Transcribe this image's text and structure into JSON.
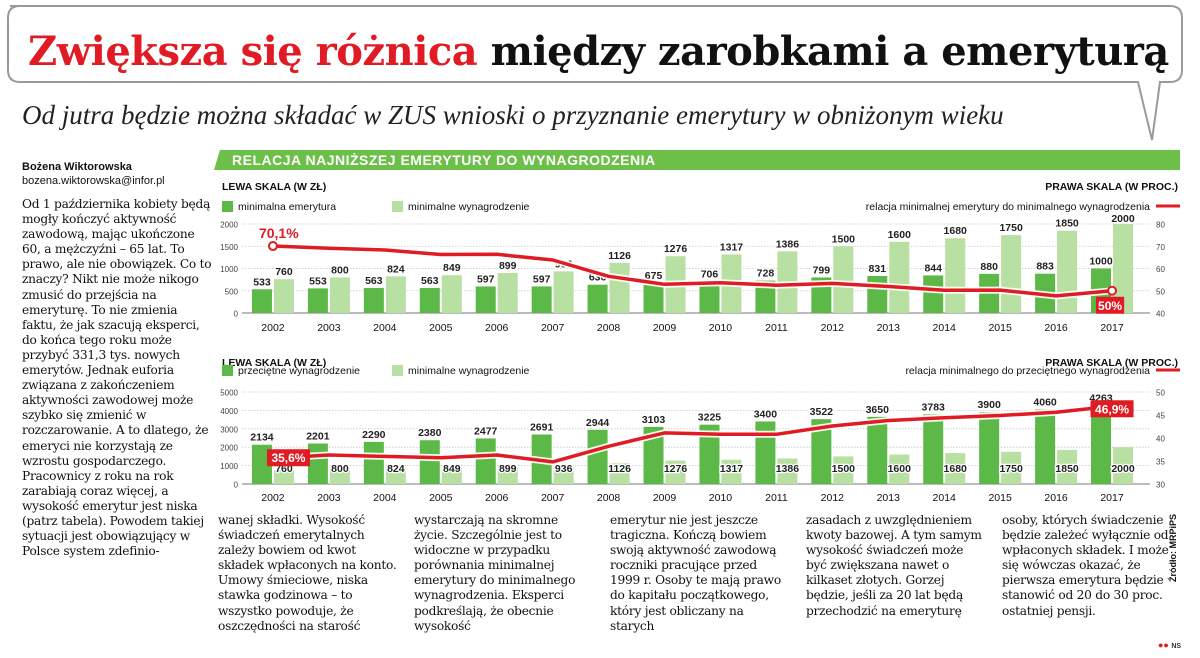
{
  "header": {
    "title_red": "Zwiększa się różnica",
    "title_black": " między zarobkami a emeryturą",
    "subtitle": "Od jutra będzie można składać w ZUS wnioski o przyznanie emerytury w obniżonym wieku"
  },
  "author": {
    "name": "Bożena Wiktorowska",
    "email": "bozena.wiktorowska@infor.pl"
  },
  "left_column": "Od 1 października kobiety będą mogły kończyć aktywność zawodową, mając ukończone 60, a mężczyźni – 65 lat. To prawo, ale nie obowiązek. Co to znaczy? Nikt nie może nikogo zmusić do przejścia na emeryturę. To nie zmienia faktu, że jak szacują eksperci, do końca tego roku może przybyć 331,3 tys. nowych emerytów. Jednak euforia związana z zakończeniem aktywności zawodowej może szybko się zmienić w rozczarowanie. A to dlatego, że emeryci nie korzystają ze wzrostu gospodarczego. Pracownicy z roku na rok zarabiają coraz więcej, a wysokość emerytur jest niska (patrz tabela). Powodem takiej sytuacji jest obowiązujący w Polsce system zdefinio-",
  "bottom_columns": [
    "wanej składki. Wysokość świadczeń emerytalnych zależy bowiem od kwot składek wpłaconych na konto. Umowy śmieciowe, niska stawka godzinowa – to wszystko powoduje, że oszczędności na starość",
    "wystarczają na skromne życie. Szczególnie jest to widoczne w przypadku porównania minimalnej emerytury do minimalnego wynagrodzenia. Eksperci podkreślają, że obecnie wysokość",
    "emerytur nie jest jeszcze tragiczna. Kończą bowiem swoją aktywność zawodową roczniki pracujące przed 1999 r. Osoby te mają prawo do kapitału początkowego, który jest obliczany na starych",
    "zasadach z uwzględnieniem kwoty bazowej. A tym samym wysokość świadczeń może być zwiększana nawet o kilkaset złotych. Gorzej będzie, jeśli za 20 lat będą przechodzić na emeryturę",
    "osoby, których świadczenie będzie zależeć wyłącznie od wpłaconych składek. I może się wówczas okazać, że pierwsza emerytura będzie stanowić od 20 do 30 proc. ostatniej pensji."
  ],
  "source": "Źródło: MRPiPS",
  "logo": "NS",
  "colors": {
    "red": "#e01b24",
    "dark_green": "#5cb947",
    "light_green": "#b8e0a2",
    "banner_green": "#6cc04a"
  },
  "chart_data": [
    {
      "type": "bar",
      "banner": "Relacja najniższej emerytury do wynagrodzenia",
      "left_axis_label": "LEWA SKALA (W ZŁ)",
      "right_axis_label": "PRAWA SKALA (W PROC.)",
      "categories": [
        "2002",
        "2003",
        "2004",
        "2005",
        "2006",
        "2007",
        "2008",
        "2009",
        "2010",
        "2011",
        "2012",
        "2013",
        "2014",
        "2015",
        "2016",
        "2017"
      ],
      "ylim": [
        0,
        2000
      ],
      "yticks": [
        "0",
        "500",
        "1000",
        "1500",
        "2000"
      ],
      "y2lim": [
        40,
        80
      ],
      "y2ticks": [
        "40",
        "50",
        "60",
        "70",
        "80"
      ],
      "series": [
        {
          "name": "minimalna emerytura",
          "color": "#5cb947",
          "values": [
            533,
            553,
            563,
            563,
            597,
            597,
            636,
            675,
            706,
            728,
            799,
            831,
            844,
            880,
            883,
            1000
          ]
        },
        {
          "name": "minimalne wynagrodzenie",
          "color": "#b8e0a2",
          "values": [
            760,
            800,
            824,
            849,
            899,
            936,
            1126,
            1276,
            1317,
            1386,
            1500,
            1600,
            1680,
            1750,
            1850,
            2000
          ]
        }
      ],
      "line": {
        "name": "relacja minimalnej emerytury do minimalnego wynagrodzenia",
        "color": "#e01b24",
        "values": [
          70.1,
          69.1,
          68.3,
          66.3,
          66.4,
          63.8,
          56.5,
          52.9,
          53.6,
          52.5,
          53.3,
          51.9,
          50.2,
          50.3,
          47.7,
          50.0
        ],
        "labels": {
          "0": "70,1%",
          "15": "50%"
        }
      }
    },
    {
      "type": "bar",
      "left_axis_label": "LEWA SKALA (W ZŁ)",
      "right_axis_label": "PRAWA SKALA (W PROC.)",
      "categories": [
        "2002",
        "2003",
        "2004",
        "2005",
        "2006",
        "2007",
        "2008",
        "2009",
        "2010",
        "2011",
        "2012",
        "2013",
        "2014",
        "2015",
        "2016",
        "2017"
      ],
      "ylim": [
        0,
        5000
      ],
      "yticks": [
        "0",
        "1000",
        "2000",
        "3000",
        "4000",
        "5000"
      ],
      "y2lim": [
        30,
        50
      ],
      "y2ticks": [
        "30",
        "35",
        "40",
        "45",
        "50"
      ],
      "series": [
        {
          "name": "przeciętne wynagrodzenie",
          "color": "#5cb947",
          "values": [
            2134,
            2201,
            2290,
            2380,
            2477,
            2691,
            2944,
            3103,
            3225,
            3400,
            3522,
            3650,
            3783,
            3900,
            4060,
            4263
          ]
        },
        {
          "name": "minimalne wynagrodzenie",
          "color": "#b8e0a2",
          "values": [
            760,
            800,
            824,
            849,
            899,
            936,
            1126,
            1276,
            1317,
            1386,
            1500,
            1600,
            1680,
            1750,
            1850,
            2000
          ]
        }
      ],
      "line": {
        "name": "relacja minimalnego do przeciętnego wynagrodzenia",
        "color": "#e01b24",
        "values": [
          35.6,
          36.3,
          36.0,
          35.7,
          36.3,
          34.8,
          38.2,
          41.1,
          40.8,
          40.8,
          42.6,
          43.8,
          44.4,
          44.9,
          45.6,
          46.9
        ],
        "labels": {
          "0": "35,6%",
          "15": "46,9%"
        }
      }
    }
  ]
}
